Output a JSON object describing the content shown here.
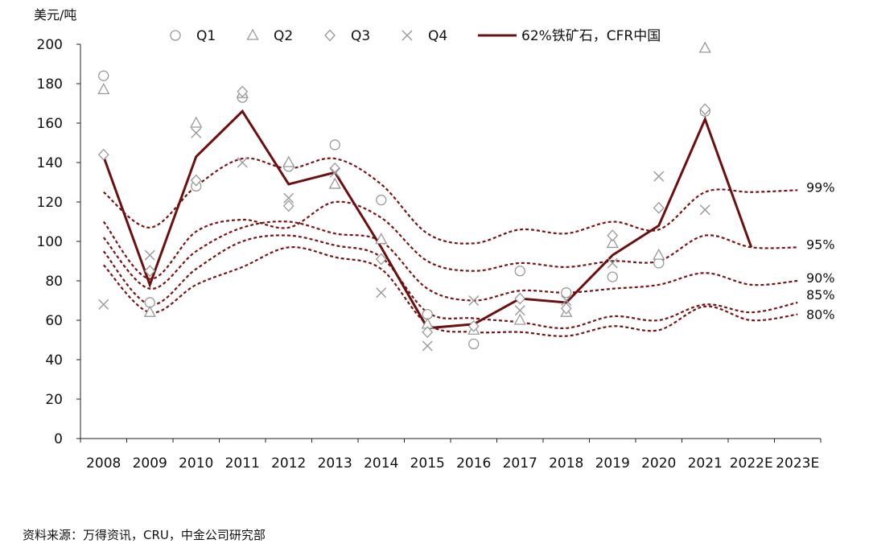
{
  "chart_data": {
    "type": "line",
    "unit_label": "美元/吨",
    "x": [
      "2008",
      "2009",
      "2010",
      "2011",
      "2012",
      "2013",
      "2014",
      "2015",
      "2016",
      "2017",
      "2018",
      "2019",
      "2020",
      "2021",
      "2022E",
      "2023E"
    ],
    "ylim": [
      0,
      200
    ],
    "yticks": [
      0,
      20,
      40,
      60,
      80,
      100,
      120,
      140,
      160,
      180,
      200
    ],
    "grid": false,
    "legend": {
      "placement": "top",
      "entries": [
        {
          "name": "Q1",
          "marker": "circle"
        },
        {
          "name": "Q2",
          "marker": "triangle"
        },
        {
          "name": "Q3",
          "marker": "diamond"
        },
        {
          "name": "Q4",
          "marker": "x"
        },
        {
          "name": "62%铁矿石，CFR中国",
          "marker": "line"
        }
      ]
    },
    "quarterly_points": [
      {
        "series": "Q1",
        "marker": "circle",
        "points": [
          {
            "x": 2008.0,
            "y": 184
          },
          {
            "x": 2009.0,
            "y": 69
          },
          {
            "x": 2010.0,
            "y": 128
          },
          {
            "x": 2011.0,
            "y": 173
          },
          {
            "x": 2012.0,
            "y": 138
          },
          {
            "x": 2013.0,
            "y": 149
          },
          {
            "x": 2014.0,
            "y": 121
          },
          {
            "x": 2015.0,
            "y": 63
          },
          {
            "x": 2016.0,
            "y": 48
          },
          {
            "x": 2017.0,
            "y": 85
          },
          {
            "x": 2018.0,
            "y": 74
          },
          {
            "x": 2019.0,
            "y": 82
          },
          {
            "x": 2020.0,
            "y": 89
          },
          {
            "x": 2021.0,
            "y": 166
          }
        ]
      },
      {
        "series": "Q2",
        "marker": "triangle",
        "points": [
          {
            "x": 2008.0,
            "y": 177
          },
          {
            "x": 2009.0,
            "y": 64
          },
          {
            "x": 2010.0,
            "y": 160
          },
          {
            "x": 2011.0,
            "y": 175
          },
          {
            "x": 2012.0,
            "y": 140
          },
          {
            "x": 2013.0,
            "y": 129
          },
          {
            "x": 2014.0,
            "y": 101
          },
          {
            "x": 2015.0,
            "y": 58
          },
          {
            "x": 2016.0,
            "y": 55
          },
          {
            "x": 2017.0,
            "y": 60
          },
          {
            "x": 2018.0,
            "y": 64
          },
          {
            "x": 2019.0,
            "y": 99
          },
          {
            "x": 2020.0,
            "y": 93
          },
          {
            "x": 2021.0,
            "y": 198
          }
        ]
      },
      {
        "series": "Q3",
        "marker": "diamond",
        "points": [
          {
            "x": 2008.0,
            "y": 144
          },
          {
            "x": 2009.0,
            "y": 85
          },
          {
            "x": 2010.0,
            "y": 131
          },
          {
            "x": 2011.0,
            "y": 176
          },
          {
            "x": 2012.0,
            "y": 118
          },
          {
            "x": 2013.0,
            "y": 137
          },
          {
            "x": 2014.0,
            "y": 91
          },
          {
            "x": 2015.0,
            "y": 54
          },
          {
            "x": 2016.0,
            "y": 57
          },
          {
            "x": 2017.0,
            "y": 71
          },
          {
            "x": 2018.0,
            "y": 66
          },
          {
            "x": 2019.0,
            "y": 103
          },
          {
            "x": 2020.0,
            "y": 117
          },
          {
            "x": 2021.0,
            "y": 167
          }
        ]
      },
      {
        "series": "Q4",
        "marker": "x",
        "points": [
          {
            "x": 2008.0,
            "y": 68
          },
          {
            "x": 2009.0,
            "y": 93
          },
          {
            "x": 2010.0,
            "y": 155
          },
          {
            "x": 2011.0,
            "y": 140
          },
          {
            "x": 2012.0,
            "y": 122
          },
          {
            "x": 2013.0,
            "y": 135
          },
          {
            "x": 2014.0,
            "y": 74
          },
          {
            "x": 2015.0,
            "y": 47
          },
          {
            "x": 2016.0,
            "y": 70
          },
          {
            "x": 2017.0,
            "y": 65
          },
          {
            "x": 2018.0,
            "y": 70
          },
          {
            "x": 2019.0,
            "y": 89
          },
          {
            "x": 2020.0,
            "y": 133
          },
          {
            "x": 2021.0,
            "y": 116
          }
        ]
      }
    ],
    "price_line": {
      "name": "62%铁矿石，CFR中国",
      "color": "#6b0f0f",
      "points": [
        {
          "x": 2008.0,
          "y": 143
        },
        {
          "x": 2009.0,
          "y": 78
        },
        {
          "x": 2010.0,
          "y": 143
        },
        {
          "x": 2011.0,
          "y": 166
        },
        {
          "x": 2012.0,
          "y": 129
        },
        {
          "x": 2013.0,
          "y": 135
        },
        {
          "x": 2014.0,
          "y": 97
        },
        {
          "x": 2015.0,
          "y": 56
        },
        {
          "x": 2016.0,
          "y": 58
        },
        {
          "x": 2017.0,
          "y": 71
        },
        {
          "x": 2018.0,
          "y": 69
        },
        {
          "x": 2019.0,
          "y": 93
        },
        {
          "x": 2020.0,
          "y": 108
        },
        {
          "x": 2021.0,
          "y": 162
        },
        {
          "x": 2022.0,
          "y": 97
        }
      ]
    },
    "cost_curves": [
      {
        "label": "99%",
        "values": [
          125,
          107,
          128,
          142,
          137,
          142,
          129,
          104,
          99,
          106,
          104,
          110,
          106,
          125,
          125,
          126
        ]
      },
      {
        "label": "95%",
        "values": [
          110,
          81,
          105,
          111,
          107,
          120,
          112,
          90,
          85,
          89,
          87,
          90,
          90,
          103,
          97,
          97
        ]
      },
      {
        "label": "90%",
        "values": [
          102,
          76,
          95,
          107,
          110,
          104,
          100,
          76,
          70,
          75,
          74,
          76,
          78,
          84,
          78,
          80
        ]
      },
      {
        "label": "85%",
        "values": [
          95,
          68,
          86,
          100,
          103,
          98,
          92,
          64,
          61,
          59,
          56,
          62,
          60,
          68,
          64,
          69
        ]
      },
      {
        "label": "80%",
        "values": [
          88,
          64,
          78,
          87,
          97,
          92,
          86,
          58,
          54,
          54,
          52,
          57,
          55,
          67,
          60,
          63
        ]
      }
    ],
    "colors": {
      "main": "#6b0f0f",
      "curve": "#7a1414",
      "marker": "#999999",
      "axis": "#222222"
    }
  },
  "source_note": "资料来源：万得资讯，CRU，中金公司研究部"
}
